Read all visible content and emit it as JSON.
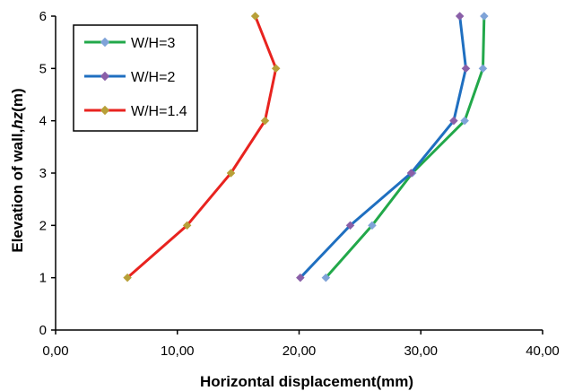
{
  "chart_data": {
    "type": "line",
    "title": "",
    "xlabel": "Horizontal displacement(mm)",
    "ylabel_prefix": "Elevation of wall,",
    "ylabel_var": "hz",
    "ylabel_suffix": "(m)",
    "xlim": [
      0,
      40
    ],
    "ylim": [
      0,
      6
    ],
    "x_ticks": [
      0,
      10,
      20,
      30,
      40
    ],
    "x_tick_labels": [
      "0,00",
      "10,00",
      "20,00",
      "30,00",
      "40,00"
    ],
    "y_ticks": [
      0,
      1,
      2,
      3,
      4,
      5,
      6
    ],
    "y_tick_labels": [
      "0",
      "1",
      "2",
      "3",
      "4",
      "5",
      "6"
    ],
    "grid": false,
    "legend_position": "top-left",
    "series": [
      {
        "name": "W/H=3",
        "color": "#22a84a",
        "marker_color": "#7fa3d8",
        "x": [
          22.2,
          26.0,
          29.3,
          33.6,
          35.1,
          35.2
        ],
        "y": [
          1,
          2,
          3,
          4,
          5,
          6
        ]
      },
      {
        "name": "W/H=2",
        "color": "#1f6fc0",
        "marker_color": "#8a5fa8",
        "x": [
          20.1,
          24.2,
          29.2,
          32.7,
          33.7,
          33.2
        ],
        "y": [
          1,
          2,
          3,
          4,
          5,
          6
        ]
      },
      {
        "name": "W/H=1.4",
        "color": "#e8231f",
        "marker_color": "#b8a038",
        "x": [
          5.9,
          10.8,
          14.4,
          17.2,
          18.1,
          16.4
        ],
        "y": [
          1,
          2,
          3,
          4,
          5,
          6
        ]
      }
    ]
  }
}
